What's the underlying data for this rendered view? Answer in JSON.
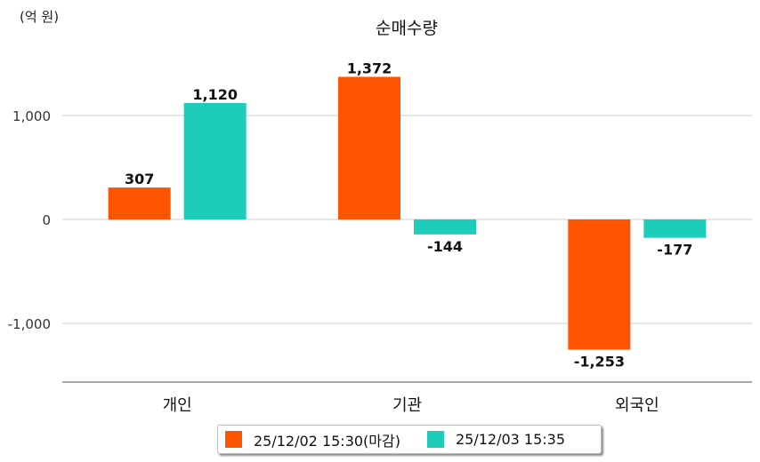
{
  "chart_data": {
    "type": "bar",
    "title": "순매수량",
    "unit_label": "(억 원)",
    "categories": [
      "개인",
      "기관",
      "외국인"
    ],
    "series": [
      {
        "name": "25/12/02 15:30(마감)",
        "color": "#FF5500",
        "values": [
          307,
          1372,
          -1253
        ]
      },
      {
        "name": "25/12/03 15:35",
        "color": "#1DCDBC",
        "values": [
          1120,
          -144,
          -177
        ]
      }
    ],
    "y_ticks": [
      1000,
      0,
      -1000
    ],
    "y_tick_labels": [
      "1,000",
      "0",
      "-1,000"
    ],
    "data_labels": [
      [
        "307",
        "1,372",
        "-1,253"
      ],
      [
        "1,120",
        "-144",
        "-177"
      ]
    ],
    "ylim": [
      -1570,
      1430
    ],
    "grid": true,
    "legend_position": "bottom"
  }
}
